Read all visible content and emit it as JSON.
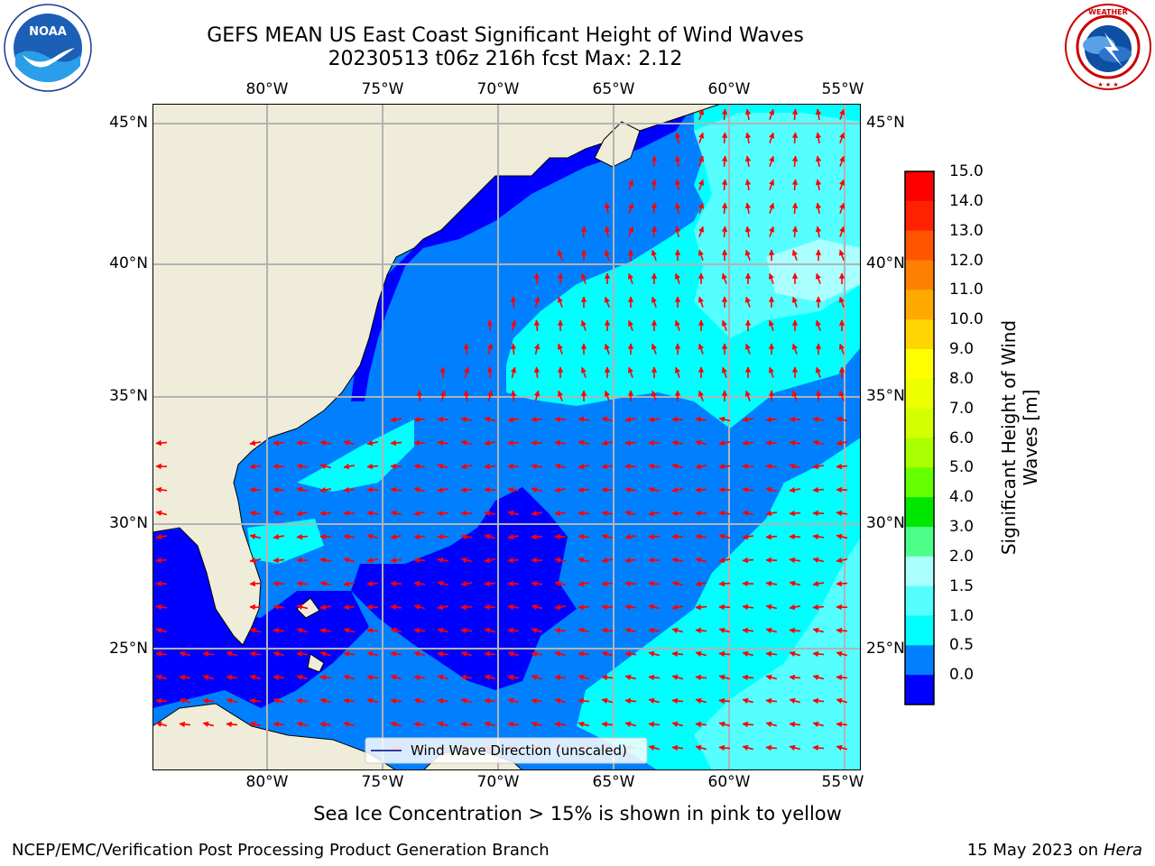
{
  "title": {
    "line1": "GEFS MEAN US East Coast Significant Height of Wind Waves",
    "line2": "20230513 t06z 216h fcst   Max: 2.12"
  },
  "logos": {
    "left": {
      "icon": "noaa-logo",
      "text": "NOAA",
      "ring_text": "NATIONAL OCEANIC AND ATMOSPHERIC ADMINISTRATION · U.S. DEPARTMENT OF COMMERCE"
    },
    "right": {
      "icon": "nws-logo",
      "ring_text": "NATIONAL WEATHER SERVICE"
    }
  },
  "map": {
    "lon_labels": [
      "80°W",
      "75°W",
      "70°W",
      "65°W",
      "60°W",
      "55°W"
    ],
    "lat_labels": [
      "45°N",
      "40°N",
      "35°N",
      "30°N",
      "25°N"
    ],
    "legend_label": "Wind Wave Direction (unscaled)",
    "land_color": "#efedd9",
    "arrow_color": "#ff0000",
    "grid_color": "#b3b3b3"
  },
  "colorbar": {
    "title": "Significant Height of Wind Waves [m]",
    "tick_labels": [
      "15.0",
      "14.0",
      "13.0",
      "12.0",
      "11.0",
      "10.0",
      "9.0",
      "8.0",
      "7.0",
      "6.0",
      "5.0",
      "4.0",
      "3.0",
      "2.0",
      "1.5",
      "1.0",
      "0.5",
      "0.0"
    ],
    "colors_top_to_bottom": [
      "#ff0000",
      "#ff2200",
      "#ff5500",
      "#ff8000",
      "#ffaa00",
      "#ffd400",
      "#ffff00",
      "#eeff00",
      "#d4ff00",
      "#aaff00",
      "#66ff00",
      "#00e600",
      "#4dff88",
      "#aaffff",
      "#55ffff",
      "#00ffff",
      "#0080ff",
      "#0000ff"
    ]
  },
  "bottom_text": "Sea Ice Concentration > 15% is shown in pink to yellow",
  "footer": {
    "left": "NCEP/EMC/Verification Post Processing Product Generation Branch",
    "right_date": "15 May 2023 on",
    "right_machine": "Hera"
  }
}
